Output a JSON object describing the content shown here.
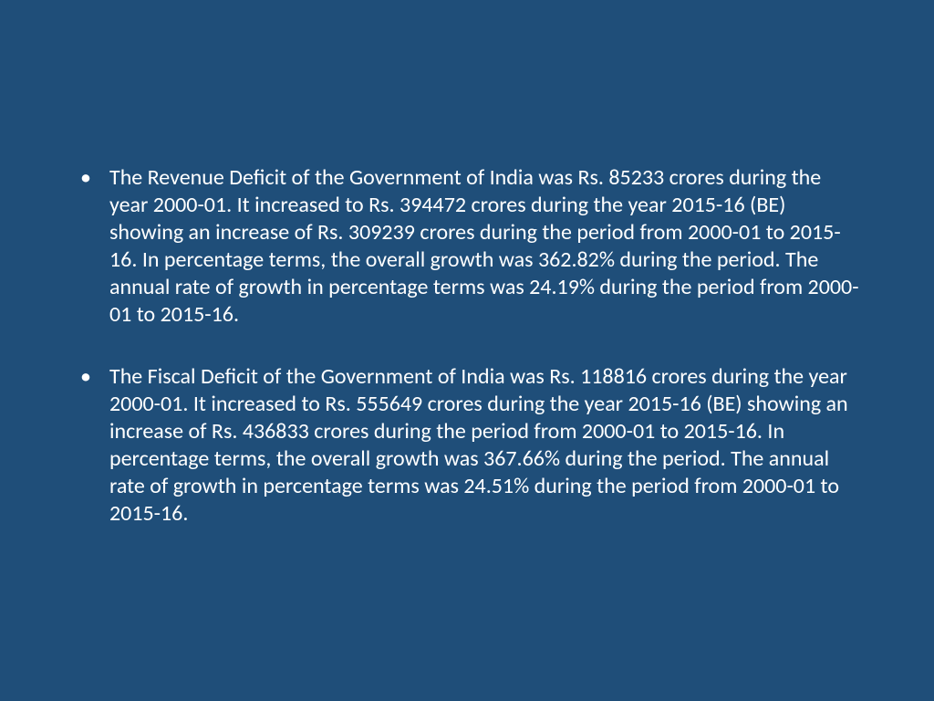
{
  "slide": {
    "background_color": "#1f4e79",
    "text_color": "#ffffff",
    "font_family": "Calibri",
    "font_size_pt": 24,
    "line_height": 1.25,
    "bullets": [
      "The Revenue Deficit of the Government of India was Rs. 85233 crores during the year 2000-01. It increased to Rs. 394472 crores during the year 2015-16 (BE) showing an increase of Rs. 309239 crores during the period from 2000-01 to 2015-16. In percentage terms, the overall growth was 362.82% during the period. The annual rate of growth in percentage terms was 24.19% during the period from 2000-01 to 2015-16.",
      "The Fiscal Deficit of the Government of India was Rs. 118816 crores during the year 2000-01. It increased to Rs. 555649 crores during the year 2015-16 (BE) showing an increase of Rs. 436833 crores during the period from 2000-01 to 2015-16. In percentage terms, the overall growth was 367.66% during the period. The annual rate of growth in percentage terms was 24.51% during the period from 2000-01 to 2015-16."
    ]
  }
}
